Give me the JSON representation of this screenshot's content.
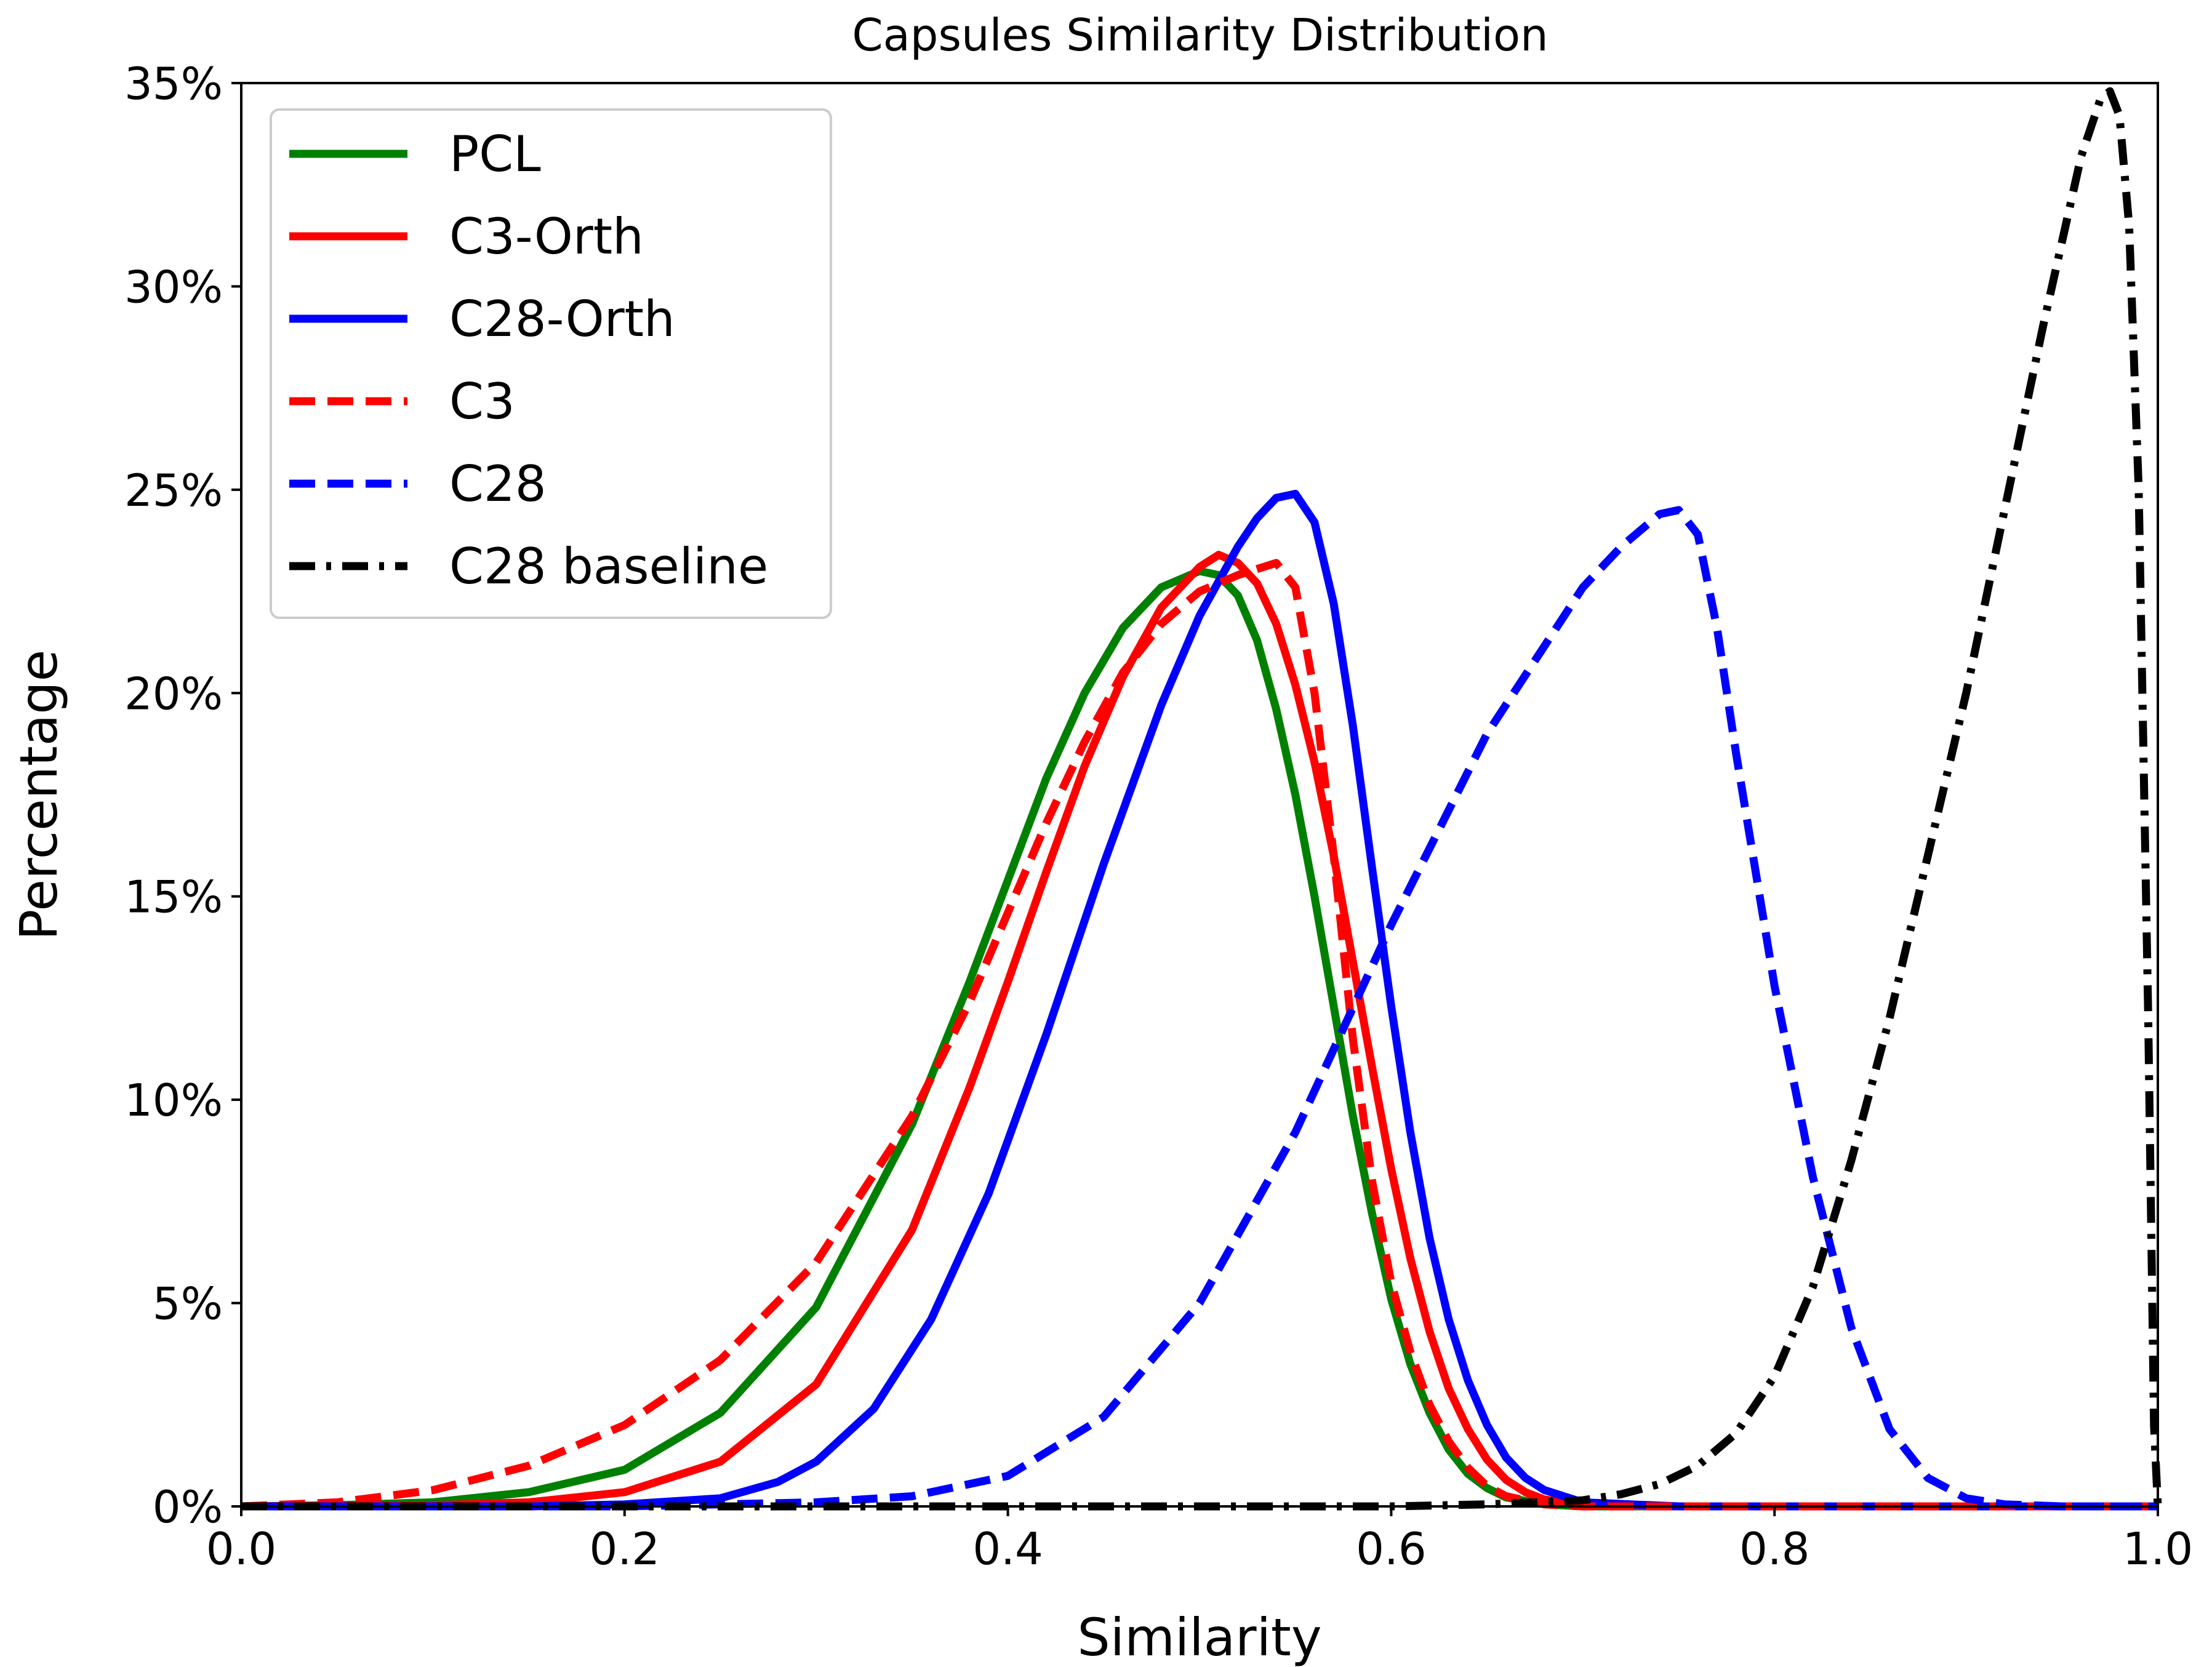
{
  "chart_data": {
    "type": "line",
    "title": "Capsules Similarity Distribution",
    "xlabel": "Similarity",
    "ylabel": "Percentage",
    "xlim": [
      0.0,
      1.0
    ],
    "ylim": [
      0,
      35
    ],
    "xticks": [
      0.0,
      0.2,
      0.4,
      0.6,
      0.8,
      1.0
    ],
    "xtick_labels": [
      "0.0",
      "0.2",
      "0.4",
      "0.6",
      "0.8",
      "1.0"
    ],
    "yticks": [
      0,
      5,
      10,
      15,
      20,
      25,
      30,
      35
    ],
    "ytick_labels": [
      "0%",
      "5%",
      "10%",
      "15%",
      "20%",
      "25%",
      "30%",
      "35%"
    ],
    "legend_position": "top-left",
    "grid": false,
    "series": [
      {
        "name": "PCL",
        "color": "#008000",
        "style": "solid",
        "x": [
          0.0,
          0.05,
          0.1,
          0.15,
          0.2,
          0.25,
          0.3,
          0.35,
          0.38,
          0.4,
          0.42,
          0.44,
          0.46,
          0.48,
          0.5,
          0.51,
          0.52,
          0.53,
          0.54,
          0.55,
          0.56,
          0.57,
          0.58,
          0.59,
          0.6,
          0.61,
          0.62,
          0.63,
          0.64,
          0.65,
          0.66,
          0.68,
          0.7,
          0.75,
          0.8,
          1.0
        ],
        "y": [
          0.0,
          0.03,
          0.1,
          0.35,
          0.9,
          2.3,
          4.9,
          9.4,
          12.9,
          15.4,
          17.9,
          20.0,
          21.6,
          22.6,
          23.0,
          22.9,
          22.4,
          21.3,
          19.6,
          17.5,
          15.0,
          12.3,
          9.6,
          7.2,
          5.1,
          3.5,
          2.3,
          1.4,
          0.8,
          0.45,
          0.22,
          0.05,
          0.0,
          0.0,
          0.0,
          0.0
        ]
      },
      {
        "name": "C3-Orth",
        "color": "#ff0000",
        "style": "solid",
        "x": [
          0.0,
          0.1,
          0.15,
          0.2,
          0.25,
          0.3,
          0.35,
          0.38,
          0.4,
          0.42,
          0.44,
          0.46,
          0.48,
          0.5,
          0.51,
          0.52,
          0.53,
          0.54,
          0.55,
          0.56,
          0.57,
          0.58,
          0.59,
          0.6,
          0.61,
          0.62,
          0.63,
          0.64,
          0.65,
          0.66,
          0.67,
          0.68,
          0.7,
          0.75,
          1.0
        ],
        "y": [
          0.0,
          0.03,
          0.1,
          0.35,
          1.1,
          3.0,
          6.8,
          10.3,
          12.9,
          15.6,
          18.2,
          20.4,
          22.1,
          23.1,
          23.4,
          23.2,
          22.7,
          21.7,
          20.2,
          18.3,
          16.0,
          13.4,
          10.8,
          8.3,
          6.1,
          4.3,
          2.9,
          1.9,
          1.15,
          0.65,
          0.35,
          0.17,
          0.03,
          0.0,
          0.0
        ]
      },
      {
        "name": "C28-Orth",
        "color": "#0000ff",
        "style": "solid",
        "x": [
          0.0,
          0.15,
          0.2,
          0.25,
          0.28,
          0.3,
          0.33,
          0.36,
          0.39,
          0.42,
          0.45,
          0.48,
          0.5,
          0.52,
          0.53,
          0.54,
          0.55,
          0.56,
          0.57,
          0.58,
          0.59,
          0.6,
          0.61,
          0.62,
          0.63,
          0.64,
          0.65,
          0.66,
          0.67,
          0.68,
          0.7,
          0.75,
          1.0
        ],
        "y": [
          0.0,
          0.0,
          0.05,
          0.2,
          0.6,
          1.1,
          2.4,
          4.6,
          7.7,
          11.6,
          15.8,
          19.7,
          21.9,
          23.6,
          24.3,
          24.8,
          24.9,
          24.2,
          22.2,
          19.2,
          15.7,
          12.3,
          9.2,
          6.6,
          4.6,
          3.1,
          2.0,
          1.2,
          0.7,
          0.4,
          0.1,
          0.0,
          0.0
        ]
      },
      {
        "name": "C3",
        "color": "#ff0000",
        "style": "dashed",
        "x": [
          0.0,
          0.05,
          0.1,
          0.15,
          0.2,
          0.25,
          0.3,
          0.35,
          0.38,
          0.4,
          0.42,
          0.44,
          0.46,
          0.48,
          0.5,
          0.52,
          0.54,
          0.55,
          0.56,
          0.57,
          0.58,
          0.59,
          0.6,
          0.61,
          0.62,
          0.63,
          0.64,
          0.65,
          0.66,
          0.68,
          0.7,
          0.75,
          1.0
        ],
        "y": [
          0.0,
          0.1,
          0.4,
          1.0,
          2.0,
          3.6,
          6.0,
          9.6,
          12.4,
          14.6,
          16.8,
          18.8,
          20.5,
          21.7,
          22.5,
          22.9,
          23.2,
          22.6,
          20.0,
          16.0,
          11.5,
          8.0,
          5.5,
          3.8,
          2.5,
          1.6,
          0.95,
          0.5,
          0.25,
          0.05,
          0.0,
          0.0,
          0.0
        ]
      },
      {
        "name": "C28",
        "color": "#0000ff",
        "style": "dashed",
        "x": [
          0.0,
          0.2,
          0.3,
          0.35,
          0.4,
          0.45,
          0.5,
          0.55,
          0.6,
          0.65,
          0.7,
          0.72,
          0.74,
          0.75,
          0.76,
          0.77,
          0.78,
          0.8,
          0.82,
          0.84,
          0.86,
          0.88,
          0.9,
          0.92,
          0.95,
          1.0
        ],
        "y": [
          0.0,
          0.0,
          0.1,
          0.25,
          0.75,
          2.2,
          5.0,
          9.2,
          14.3,
          19.0,
          22.6,
          23.6,
          24.4,
          24.5,
          23.9,
          21.6,
          18.5,
          12.8,
          8.1,
          4.4,
          1.9,
          0.7,
          0.2,
          0.05,
          0.0,
          0.0
        ]
      },
      {
        "name": "C28 baseline",
        "color": "#000000",
        "style": "dashdot",
        "x": [
          0.0,
          0.6,
          0.65,
          0.7,
          0.72,
          0.74,
          0.76,
          0.78,
          0.8,
          0.82,
          0.84,
          0.86,
          0.88,
          0.9,
          0.92,
          0.94,
          0.96,
          0.97,
          0.975,
          0.98,
          0.985,
          0.99,
          0.995,
          0.998,
          1.0
        ],
        "y": [
          0.0,
          0.0,
          0.05,
          0.15,
          0.3,
          0.55,
          1.0,
          1.8,
          3.2,
          5.4,
          8.5,
          12.0,
          16.0,
          20.0,
          24.5,
          29.0,
          33.2,
          34.6,
          34.8,
          34.2,
          31.5,
          25.0,
          12.0,
          2.0,
          0.0
        ]
      }
    ]
  }
}
